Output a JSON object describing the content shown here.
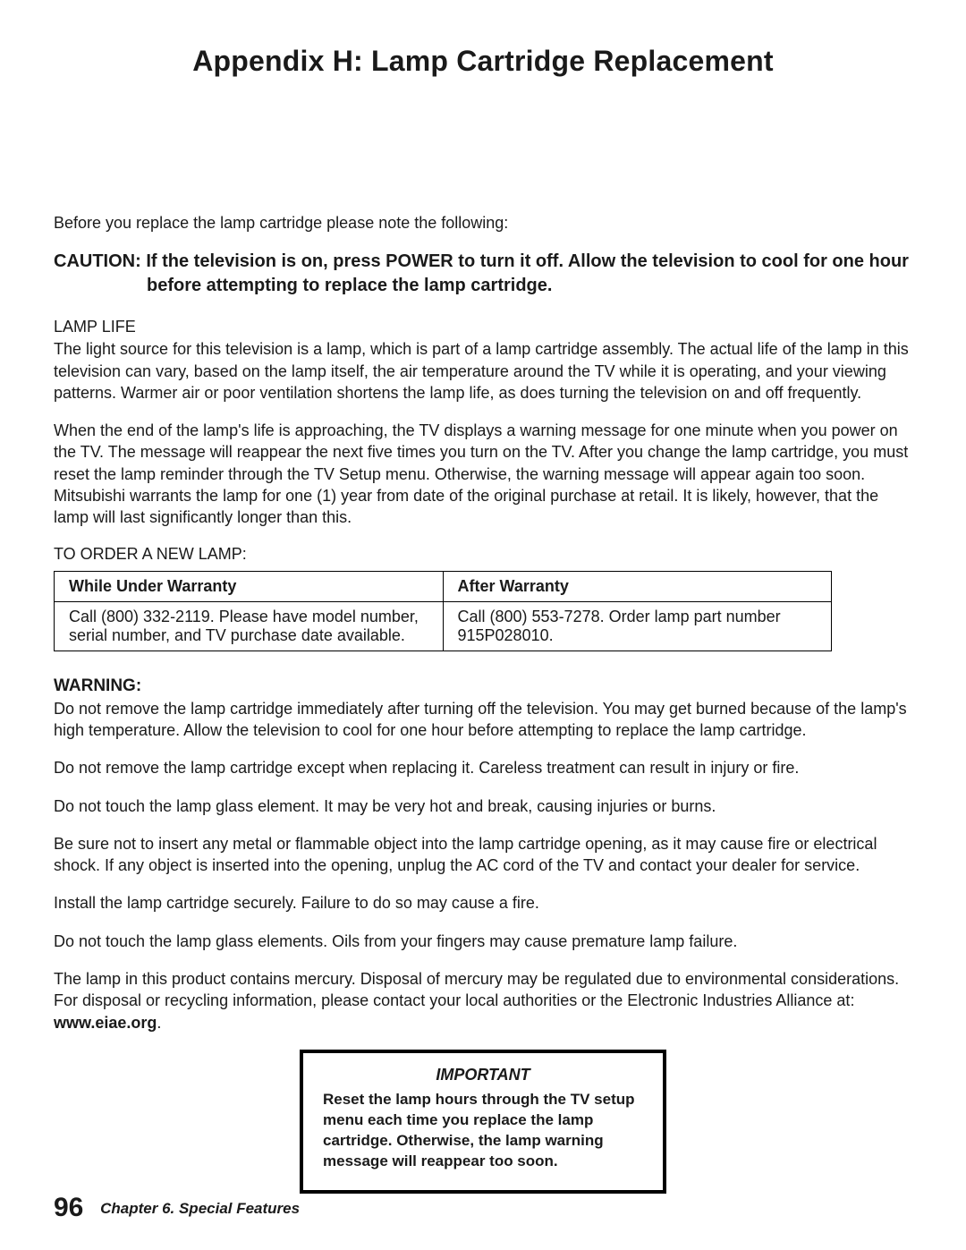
{
  "title": "Appendix H: Lamp Cartridge Replacement",
  "intro": "Before you replace the lamp cartridge please note the following:",
  "caution_label": "CAUTION:",
  "caution_text": "If the television is on, press POWER to turn it off.  Allow the television to cool for one hour before attempting to replace the lamp cartridge.",
  "lamp_life_label": "LAMP LIFE",
  "lamp_life_p1": "The light source for this television is a lamp, which is part of a lamp cartridge assembly.  The actual life of the lamp in this television can vary, based on the lamp itself, the air temperature around the TV while it is operating, and your viewing patterns.  Warmer air or poor ventilation shortens the lamp life, as does turning the television on and off frequently.",
  "lamp_life_p2": "When the end of the lamp's life is approaching, the TV displays a warning message for one minute when you power on the TV.  The message will reappear the next five times you turn on the TV.  After you change the lamp cartridge, you must reset the lamp reminder through the TV Setup menu.  Otherwise, the warning message will appear again too soon.  Mitsubishi warrants the lamp for one (1) year from date of the original purchase at retail.  It is likely, however, that the lamp will last significantly longer than this.",
  "order_label": "TO ORDER A NEW LAMP:",
  "table": {
    "headers": [
      "While Under Warranty",
      "After Warranty"
    ],
    "row": [
      "Call (800) 332-2119.  Please have model number, serial number, and TV purchase date available.",
      "Call (800) 553-7278.  Order lamp part number 915P028010."
    ]
  },
  "warning_label": "WARNING:",
  "warn_p1": "Do not remove the lamp cartridge immediately after turning off the television.  You may get burned because of the lamp's high temperature.  Allow the television to cool for one hour before attempting to replace the lamp cartridge.",
  "warn_p2": "Do not remove the lamp cartridge except when replacing it.  Careless treatment can result in injury or fire.",
  "warn_p3": "Do not touch the lamp glass element.  It may be very hot and break, causing injuries or burns.",
  "warn_p4": "Be sure not to insert any metal or flammable object into the lamp cartridge opening, as it may cause fire or electrical shock.  If any object is inserted into the opening, unplug the AC cord of the TV and contact your dealer for service.",
  "warn_p5": "Install the lamp cartridge securely.  Failure to do so may cause a fire.",
  "warn_p6": "Do not touch the lamp  glass elements. Oils from your fingers may cause premature lamp failure.",
  "mercury_p": "The lamp in this product contains mercury.  Disposal of mercury may be regulated due to environmental considerations.  For disposal or recycling information, please contact your local authorities or the Electronic Industries Alliance at: ",
  "mercury_url": "www.eiae.org",
  "important_title": "IMPORTANT",
  "important_body": "Reset the lamp hours through the TV setup menu each time you replace the lamp cartridge.  Otherwise, the lamp warning message will reappear too soon.",
  "page_number": "96",
  "chapter": "Chapter 6. Special Features"
}
